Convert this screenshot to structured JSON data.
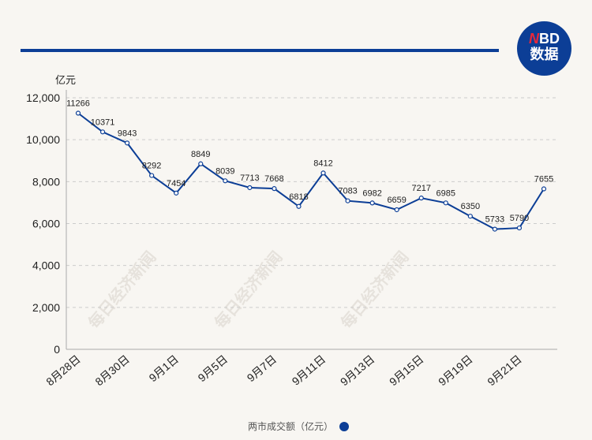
{
  "logo": {
    "text_n": "N",
    "text_bd": "BD",
    "text_cn": "数据"
  },
  "watermark": "每日经济新闻",
  "colors": {
    "line": "#0c3e96",
    "accent": "#0c3e96",
    "grid": "#cccccc"
  },
  "chart_data": {
    "type": "line",
    "title": "",
    "ylabel": "亿元",
    "xlabel": "",
    "ylim": [
      0,
      12000
    ],
    "yticks": [
      0,
      2000,
      4000,
      6000,
      8000,
      10000,
      12000
    ],
    "ytick_labels": [
      "0",
      "2,000",
      "4,000",
      "6,000",
      "8,000",
      "10,000",
      "12,000"
    ],
    "x_tick_labels": [
      "8月28日",
      "8月30日",
      "9月1日",
      "9月5日",
      "9月7日",
      "9月11日",
      "9月13日",
      "9月15日",
      "9月19日",
      "9月21日"
    ],
    "grid": true,
    "legend": "bottom-center",
    "series": [
      {
        "name": "两市成交额（亿元）",
        "values": [
          11266,
          10371,
          9843,
          8292,
          7454,
          8849,
          8039,
          7713,
          7668,
          6818,
          8412,
          7083,
          6982,
          6659,
          7217,
          6985,
          6350,
          5733,
          5790,
          7655
        ]
      }
    ]
  }
}
